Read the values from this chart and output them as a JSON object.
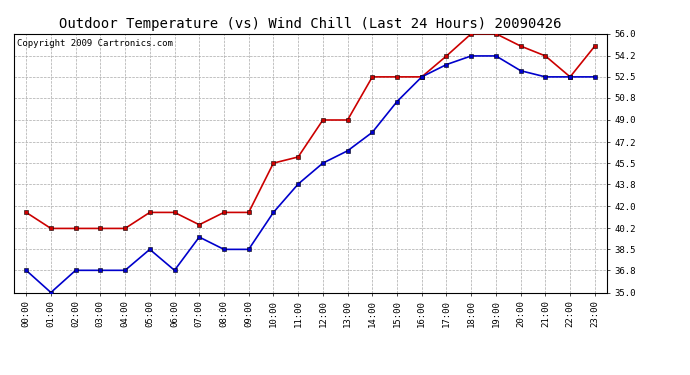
{
  "title": "Outdoor Temperature (vs) Wind Chill (Last 24 Hours) 20090426",
  "copyright": "Copyright 2009 Cartronics.com",
  "hours": [
    "00:00",
    "01:00",
    "02:00",
    "03:00",
    "04:00",
    "05:00",
    "06:00",
    "07:00",
    "08:00",
    "09:00",
    "10:00",
    "11:00",
    "12:00",
    "13:00",
    "14:00",
    "15:00",
    "16:00",
    "17:00",
    "18:00",
    "19:00",
    "20:00",
    "21:00",
    "22:00",
    "23:00"
  ],
  "temp": [
    41.5,
    40.2,
    40.2,
    40.2,
    40.2,
    41.5,
    41.5,
    40.5,
    41.5,
    41.5,
    45.5,
    46.0,
    49.0,
    49.0,
    52.5,
    52.5,
    52.5,
    54.2,
    56.0,
    56.0,
    55.0,
    54.2,
    52.5,
    55.0
  ],
  "windchill": [
    36.8,
    35.0,
    36.8,
    36.8,
    36.8,
    38.5,
    36.8,
    39.5,
    38.5,
    38.5,
    41.5,
    43.8,
    45.5,
    46.5,
    48.0,
    50.5,
    52.5,
    53.5,
    54.2,
    54.2,
    53.0,
    52.5,
    52.5,
    52.5
  ],
  "temp_color": "#cc0000",
  "windchill_color": "#0000cc",
  "bg_color": "#ffffff",
  "grid_color": "#aaaaaa",
  "ylim_min": 35.0,
  "ylim_max": 56.0,
  "yticks": [
    35.0,
    36.8,
    38.5,
    40.2,
    42.0,
    43.8,
    45.5,
    47.2,
    49.0,
    50.8,
    52.5,
    54.2,
    56.0
  ],
  "title_fontsize": 10,
  "copyright_fontsize": 6.5,
  "tick_fontsize": 6.5,
  "marker": "s",
  "marker_size": 2.5,
  "line_width": 1.2
}
